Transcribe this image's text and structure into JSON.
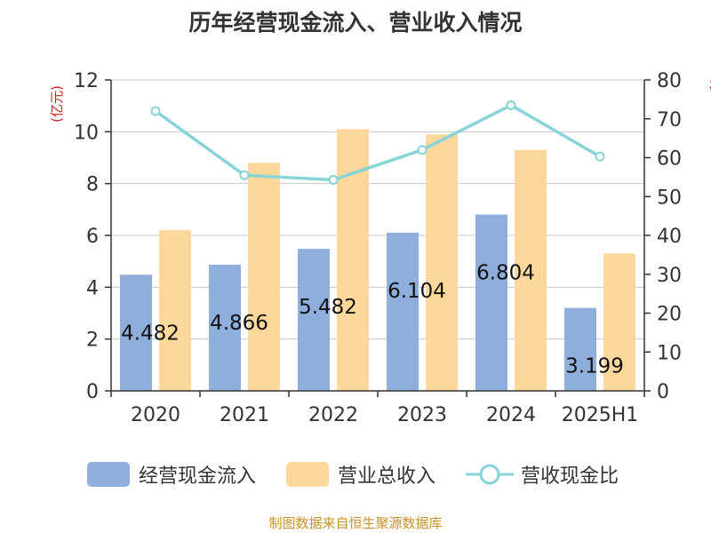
{
  "chart_data": {
    "type": "bar",
    "title": "历年经营现金流入、营业收入情况",
    "categories": [
      "2020",
      "2021",
      "2022",
      "2023",
      "2024",
      "2025H1"
    ],
    "ylabel_left": "(亿元)",
    "ylabel_right": "%",
    "ylim_left": [
      0,
      12
    ],
    "yticks_left": [
      "0",
      "2",
      "4",
      "6",
      "8",
      "10",
      "12"
    ],
    "ylim_right": [
      0,
      80
    ],
    "yticks_right": [
      "0",
      "10",
      "20",
      "30",
      "40",
      "50",
      "60",
      "70",
      "80"
    ],
    "grid": true,
    "legend_position": "bottom",
    "series": [
      {
        "name": "经营现金流入",
        "type": "bar",
        "axis": "left",
        "color": "#8eaedb",
        "values": [
          4.482,
          4.866,
          5.482,
          6.104,
          6.804,
          3.199
        ],
        "labels": [
          "4.482",
          "4.866",
          "5.482",
          "6.104",
          "6.804",
          "3.199"
        ]
      },
      {
        "name": "营业总收入",
        "type": "bar",
        "axis": "left",
        "color": "#fdd89a",
        "values": [
          6.2,
          8.8,
          10.1,
          9.9,
          9.3,
          5.3
        ]
      },
      {
        "name": "营收现金比",
        "type": "line",
        "axis": "right",
        "color": "#86d4d8",
        "values": [
          72,
          55.5,
          54.3,
          62,
          73.5,
          60.3
        ]
      }
    ]
  },
  "footer": {
    "source": "制图数据来自恒生聚源数据库"
  }
}
